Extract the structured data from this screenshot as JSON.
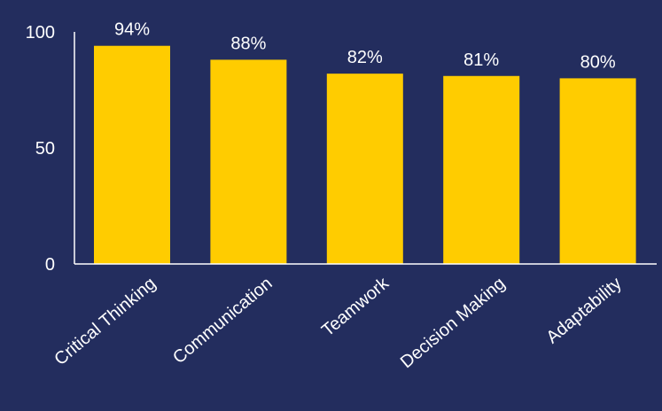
{
  "chart_data": {
    "type": "bar",
    "categories": [
      "Critical Thinking",
      "Communication",
      "Teamwork",
      "Decision Making",
      "Adaptability"
    ],
    "values": [
      94,
      88,
      82,
      81,
      80
    ],
    "data_labels": [
      "94%",
      "88%",
      "82%",
      "81%",
      "80%"
    ],
    "title": "",
    "xlabel": "",
    "ylabel": "",
    "ylim": [
      0,
      100
    ],
    "yticks": [
      0,
      50,
      100
    ],
    "ytick_labels": [
      "0",
      "50",
      "100"
    ],
    "grid": false,
    "legend": "none"
  },
  "colors": {
    "background": "#232d5e",
    "bar": "#ffcc00",
    "text": "#ffffff",
    "axis": "#ffffff"
  }
}
